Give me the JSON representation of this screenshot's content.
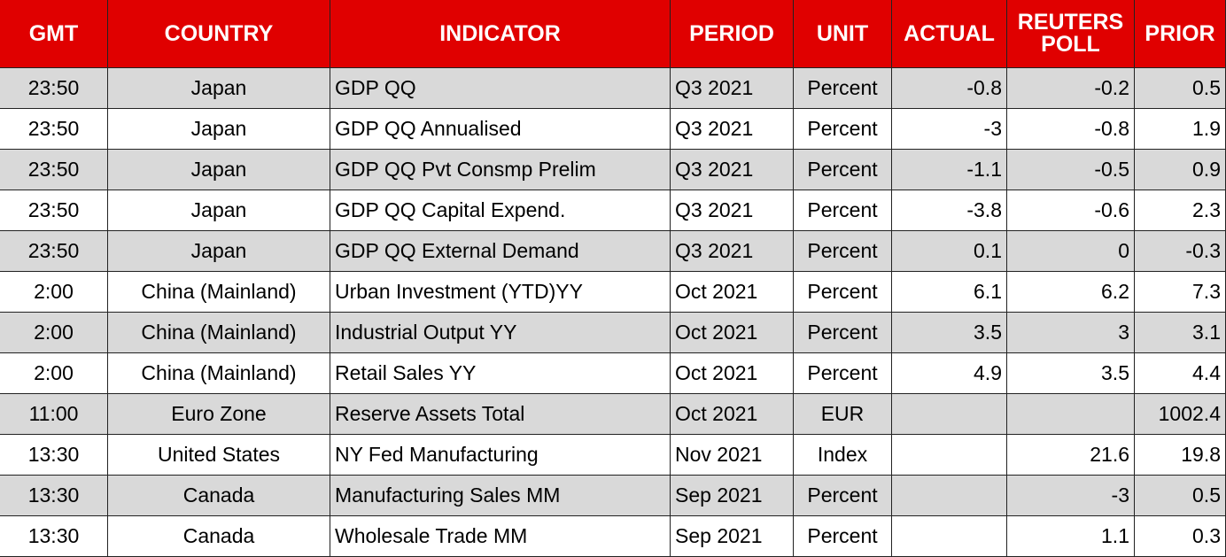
{
  "table": {
    "header": [
      "GMT",
      "COUNTRY",
      "INDICATOR",
      "PERIOD",
      "UNIT",
      "ACTUAL",
      "REUTERS POLL",
      "PRIOR"
    ],
    "rows": [
      [
        "23:50",
        "Japan",
        "GDP QQ",
        "Q3 2021",
        "Percent",
        "-0.8",
        "-0.2",
        "0.5"
      ],
      [
        "23:50",
        "Japan",
        "GDP QQ Annualised",
        "Q3 2021",
        "Percent",
        "-3",
        "-0.8",
        "1.9"
      ],
      [
        "23:50",
        "Japan",
        "GDP QQ Pvt Consmp Prelim",
        "Q3 2021",
        "Percent",
        "-1.1",
        "-0.5",
        "0.9"
      ],
      [
        "23:50",
        "Japan",
        "GDP QQ Capital Expend.",
        "Q3 2021",
        "Percent",
        "-3.8",
        "-0.6",
        "2.3"
      ],
      [
        "23:50",
        "Japan",
        "GDP QQ External Demand",
        "Q3 2021",
        "Percent",
        "0.1",
        "0",
        "-0.3"
      ],
      [
        "2:00",
        "China (Mainland)",
        "Urban Investment (YTD)YY",
        "Oct 2021",
        "Percent",
        "6.1",
        "6.2",
        "7.3"
      ],
      [
        "2:00",
        "China (Mainland)",
        "Industrial Output YY",
        "Oct 2021",
        "Percent",
        "3.5",
        "3",
        "3.1"
      ],
      [
        "2:00",
        "China (Mainland)",
        "Retail Sales YY",
        "Oct 2021",
        "Percent",
        "4.9",
        "3.5",
        "4.4"
      ],
      [
        "11:00",
        "Euro Zone",
        "Reserve Assets Total",
        "Oct 2021",
        "EUR",
        null,
        null,
        "1002.4"
      ],
      [
        "13:30",
        "United States",
        "NY Fed Manufacturing",
        "Nov 2021",
        "Index",
        null,
        "21.6",
        "19.8"
      ],
      [
        "13:30",
        "Canada",
        "Manufacturing Sales MM",
        "Sep 2021",
        "Percent",
        null,
        "-3",
        "0.5"
      ],
      [
        "13:30",
        "Canada",
        "Wholesale Trade MM",
        "Sep 2021",
        "Percent",
        null,
        "1.1",
        "0.3"
      ]
    ]
  }
}
